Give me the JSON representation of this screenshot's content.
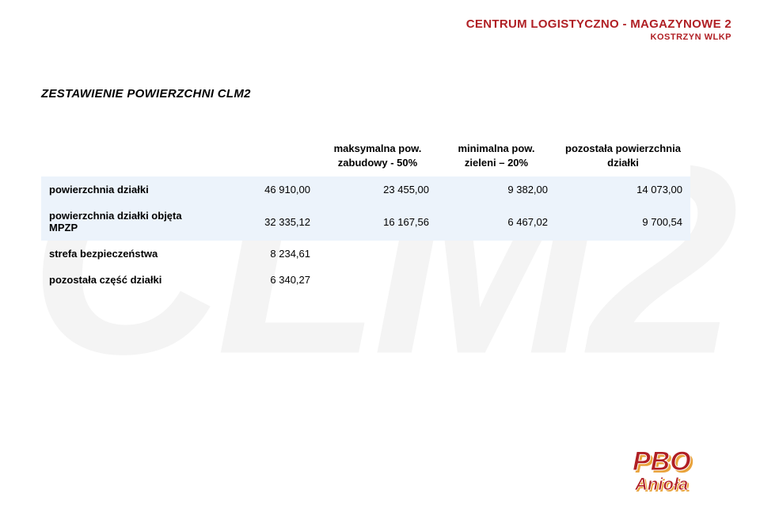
{
  "colors": {
    "brand_red": "#b01f24",
    "brand_orange": "#e9a33b",
    "band_bg": "#ecf3fb",
    "watermark": "#f4f4f4",
    "text": "#000000",
    "page_bg": "#ffffff"
  },
  "watermark_text": "CLM2",
  "header": {
    "title": "CENTRUM LOGISTYCZNO - MAGAZYNOWE 2",
    "subtitle": "KOSTRZYN WLKP"
  },
  "section_title": "ZESTAWIENIE POWIERZCHNI CLM2",
  "table": {
    "columns": [
      {
        "key": "label",
        "header": ""
      },
      {
        "key": "total",
        "header": ""
      },
      {
        "key": "build",
        "header": "maksymalna pow. zabudowy - 50%"
      },
      {
        "key": "green",
        "header": "minimalna pow. zieleni – 20%"
      },
      {
        "key": "rest",
        "header": "pozostała powierzchnia działki"
      }
    ],
    "rows": [
      {
        "label": "powierzchnia działki",
        "total": "46 910,00",
        "build": "23 455,00",
        "green": "9 382,00",
        "rest": "14 073,00",
        "band": true
      },
      {
        "label": "powierzchnia działki objęta MPZP",
        "total": "32 335,12",
        "build": "16 167,56",
        "green": "6 467,02",
        "rest": "9 700,54",
        "band": true
      },
      {
        "label": "strefa bezpieczeństwa",
        "total": "8 234,61",
        "build": "",
        "green": "",
        "rest": "",
        "band": false
      },
      {
        "label": "pozostała część działki",
        "total": "6 340,27",
        "build": "",
        "green": "",
        "rest": "",
        "band": false
      }
    ]
  },
  "logo": {
    "top_text": "PBO",
    "bottom_text": "Anioła"
  }
}
